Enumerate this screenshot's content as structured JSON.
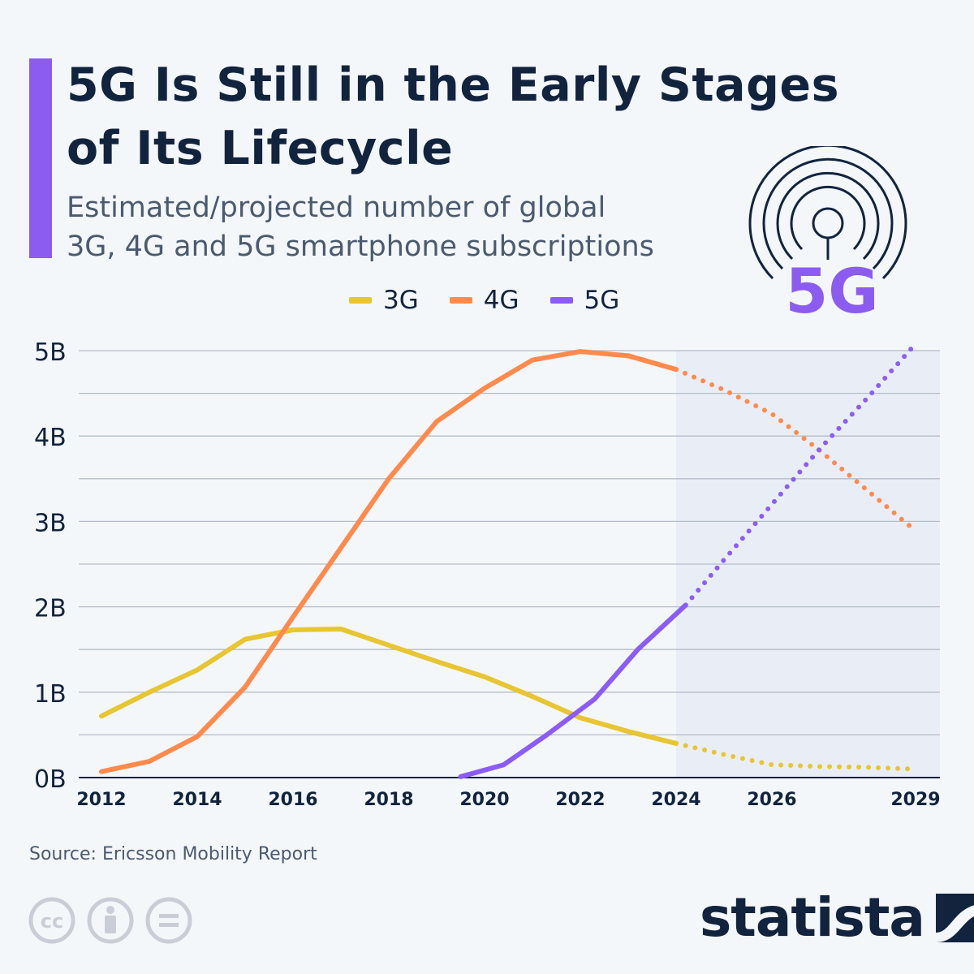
{
  "header": {
    "title_line1": "5G Is Still in the Early Stages",
    "title_line2": "of Its Lifecycle",
    "subtitle_line1": "Estimated/projected number of global",
    "subtitle_line2": "3G, 4G and 5G smartphone subscriptions",
    "icon_text": "5G"
  },
  "footer": {
    "source": "Source: Ericsson Mobility Report",
    "brand": "statista"
  },
  "colors": {
    "3G": "#e8c532",
    "4G": "#ff8a4c",
    "5G": "#8b5cf6",
    "accent": "#8c5cf0",
    "projection_shade": "#e9eef6"
  },
  "chart_data": {
    "type": "line",
    "title": "",
    "xlabel": "",
    "ylabel": "",
    "xlim": [
      2012,
      2029
    ],
    "ylim": [
      0,
      5
    ],
    "x_ticks": [
      "2012",
      "2014",
      "2016",
      "2018",
      "2020",
      "2022",
      "2024",
      "2026",
      "2029"
    ],
    "y_ticks": [
      "0B",
      "1B",
      "2B",
      "3B",
      "4B",
      "5B"
    ],
    "grid": true,
    "legend_position": "top",
    "projection_start": 2024,
    "series": [
      {
        "name": "3G",
        "x": [
          2012,
          2013,
          2014,
          2015,
          2016,
          2017,
          2018,
          2019,
          2020,
          2021,
          2022,
          2023,
          2024,
          2025,
          2026,
          2027,
          2028,
          2029
        ],
        "values": [
          0.72,
          1.0,
          1.26,
          1.62,
          1.73,
          1.74,
          1.55,
          1.36,
          1.18,
          0.95,
          0.7,
          0.54,
          0.4,
          0.27,
          0.15,
          0.13,
          0.12,
          0.1
        ]
      },
      {
        "name": "4G",
        "x": [
          2012,
          2013,
          2014,
          2015,
          2016,
          2017,
          2018,
          2019,
          2020,
          2021,
          2022,
          2023,
          2024,
          2025,
          2026,
          2027,
          2028,
          2029
        ],
        "values": [
          0.07,
          0.19,
          0.48,
          1.06,
          1.88,
          2.69,
          3.5,
          4.17,
          4.56,
          4.89,
          4.99,
          4.94,
          4.78,
          4.54,
          4.26,
          3.83,
          3.36,
          2.89
        ]
      },
      {
        "name": "5G",
        "x": [
          2019.5,
          2020.4,
          2021.3,
          2022.3,
          2023.2,
          2024.2,
          2025,
          2026,
          2027,
          2028,
          2029
        ],
        "values": [
          0.01,
          0.15,
          0.5,
          0.92,
          1.5,
          2.02,
          2.55,
          3.2,
          3.85,
          4.45,
          5.08
        ]
      }
    ]
  }
}
